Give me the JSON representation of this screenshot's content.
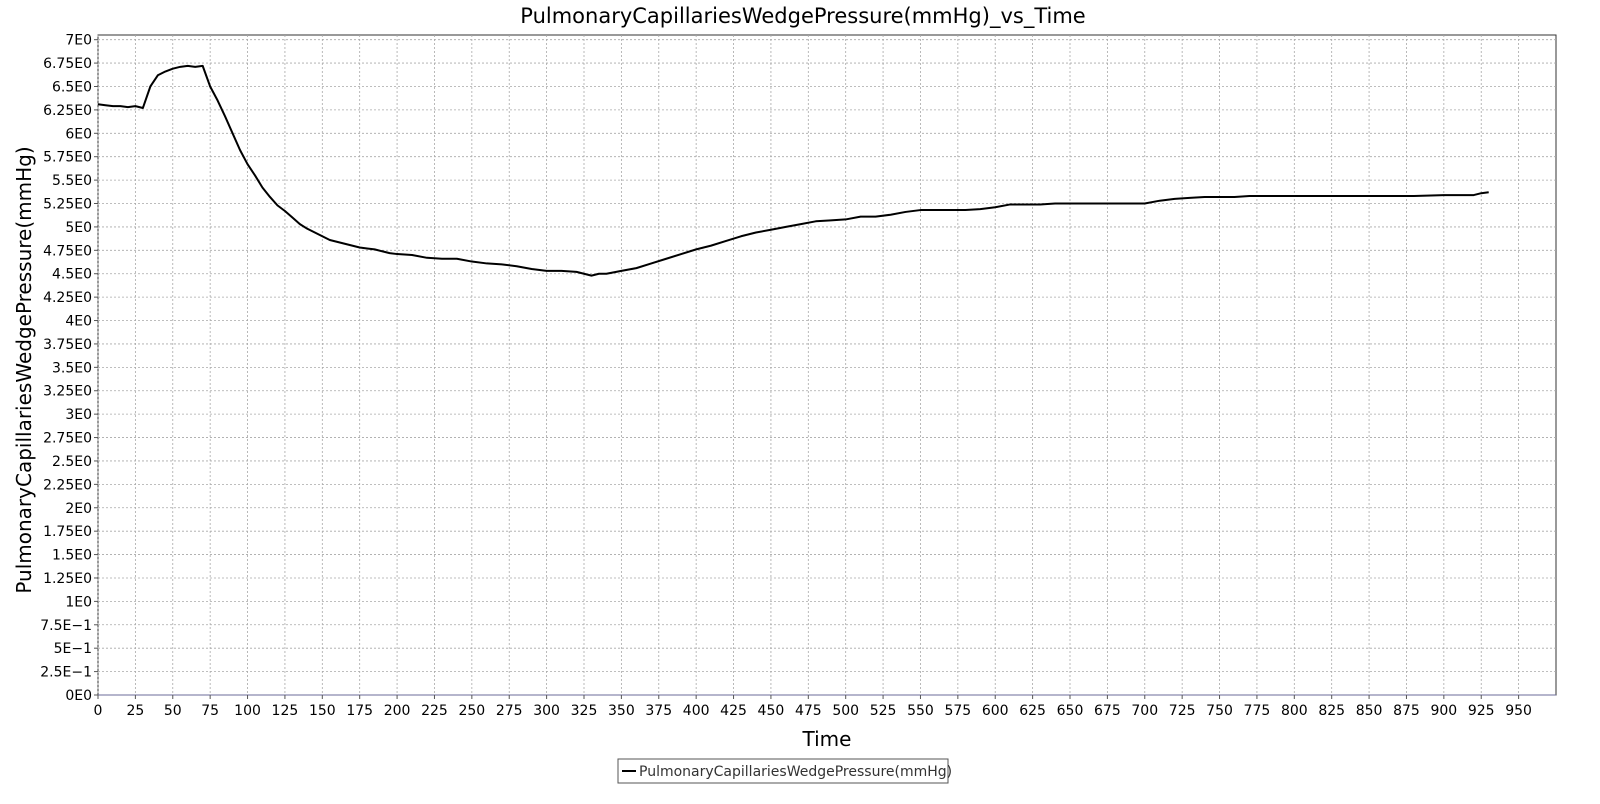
{
  "chart_data": {
    "type": "line",
    "title": "PulmonaryCapillariesWedgePressure(mmHg)_vs_Time",
    "xlabel": "Time",
    "ylabel": "PulmonaryCapillariesWedgePressure(mmHg)",
    "xlim": [
      0,
      975
    ],
    "ylim": [
      0,
      7.05
    ],
    "x_ticks": [
      0,
      25,
      50,
      75,
      100,
      125,
      150,
      175,
      200,
      225,
      250,
      275,
      300,
      325,
      350,
      375,
      400,
      425,
      450,
      475,
      500,
      525,
      550,
      575,
      600,
      625,
      650,
      675,
      700,
      725,
      750,
      775,
      800,
      825,
      850,
      875,
      900,
      925,
      950
    ],
    "y_ticks": [
      {
        "value": 0,
        "label": "0E0"
      },
      {
        "value": 0.25,
        "label": "2.5E−1"
      },
      {
        "value": 0.5,
        "label": "5E−1"
      },
      {
        "value": 0.75,
        "label": "7.5E−1"
      },
      {
        "value": 1.0,
        "label": "1E0"
      },
      {
        "value": 1.25,
        "label": "1.25E0"
      },
      {
        "value": 1.5,
        "label": "1.5E0"
      },
      {
        "value": 1.75,
        "label": "1.75E0"
      },
      {
        "value": 2.0,
        "label": "2E0"
      },
      {
        "value": 2.25,
        "label": "2.25E0"
      },
      {
        "value": 2.5,
        "label": "2.5E0"
      },
      {
        "value": 2.75,
        "label": "2.75E0"
      },
      {
        "value": 3.0,
        "label": "3E0"
      },
      {
        "value": 3.25,
        "label": "3.25E0"
      },
      {
        "value": 3.5,
        "label": "3.5E0"
      },
      {
        "value": 3.75,
        "label": "3.75E0"
      },
      {
        "value": 4.0,
        "label": "4E0"
      },
      {
        "value": 4.25,
        "label": "4.25E0"
      },
      {
        "value": 4.5,
        "label": "4.5E0"
      },
      {
        "value": 4.75,
        "label": "4.75E0"
      },
      {
        "value": 5.0,
        "label": "5E0"
      },
      {
        "value": 5.25,
        "label": "5.25E0"
      },
      {
        "value": 5.5,
        "label": "5.5E0"
      },
      {
        "value": 5.75,
        "label": "5.75E0"
      },
      {
        "value": 6.0,
        "label": "6E0"
      },
      {
        "value": 6.25,
        "label": "6.25E0"
      },
      {
        "value": 6.5,
        "label": "6.5E0"
      },
      {
        "value": 6.75,
        "label": "6.75E0"
      },
      {
        "value": 7.0,
        "label": "7E0"
      }
    ],
    "grid": true,
    "legend_position": "bottom-center",
    "series": [
      {
        "name": "PulmonaryCapillariesWedgePressure(mmHg)",
        "color": "#000000",
        "x": [
          0,
          5,
          10,
          15,
          20,
          25,
          30,
          35,
          40,
          45,
          50,
          55,
          60,
          65,
          70,
          75,
          80,
          85,
          90,
          95,
          100,
          105,
          110,
          115,
          120,
          125,
          130,
          135,
          140,
          145,
          150,
          155,
          160,
          165,
          170,
          175,
          180,
          185,
          190,
          195,
          200,
          210,
          220,
          230,
          240,
          250,
          260,
          270,
          280,
          290,
          300,
          310,
          320,
          330,
          335,
          340,
          350,
          360,
          370,
          380,
          390,
          400,
          410,
          420,
          430,
          440,
          450,
          460,
          470,
          480,
          490,
          500,
          510,
          520,
          530,
          540,
          550,
          560,
          570,
          580,
          590,
          600,
          610,
          620,
          630,
          640,
          650,
          660,
          670,
          680,
          690,
          700,
          710,
          720,
          730,
          740,
          750,
          760,
          770,
          780,
          790,
          800,
          820,
          840,
          860,
          880,
          900,
          915,
          920,
          925,
          930
        ],
        "y": [
          6.31,
          6.3,
          6.29,
          6.29,
          6.28,
          6.29,
          6.27,
          6.5,
          6.62,
          6.66,
          6.69,
          6.71,
          6.72,
          6.71,
          6.72,
          6.5,
          6.35,
          6.18,
          6.0,
          5.82,
          5.67,
          5.55,
          5.42,
          5.32,
          5.23,
          5.17,
          5.1,
          5.03,
          4.98,
          4.94,
          4.9,
          4.86,
          4.84,
          4.82,
          4.8,
          4.78,
          4.77,
          4.76,
          4.74,
          4.72,
          4.71,
          4.7,
          4.67,
          4.66,
          4.66,
          4.63,
          4.61,
          4.6,
          4.58,
          4.55,
          4.53,
          4.53,
          4.52,
          4.48,
          4.5,
          4.5,
          4.53,
          4.56,
          4.61,
          4.66,
          4.71,
          4.76,
          4.8,
          4.85,
          4.9,
          4.94,
          4.97,
          5.0,
          5.03,
          5.06,
          5.07,
          5.08,
          5.11,
          5.11,
          5.13,
          5.16,
          5.18,
          5.18,
          5.18,
          5.18,
          5.19,
          5.21,
          5.24,
          5.24,
          5.24,
          5.25,
          5.25,
          5.25,
          5.25,
          5.25,
          5.25,
          5.25,
          5.28,
          5.3,
          5.31,
          5.32,
          5.32,
          5.32,
          5.33,
          5.33,
          5.33,
          5.33,
          5.33,
          5.33,
          5.33,
          5.33,
          5.34,
          5.34,
          5.34,
          5.36,
          5.37
        ]
      }
    ]
  }
}
